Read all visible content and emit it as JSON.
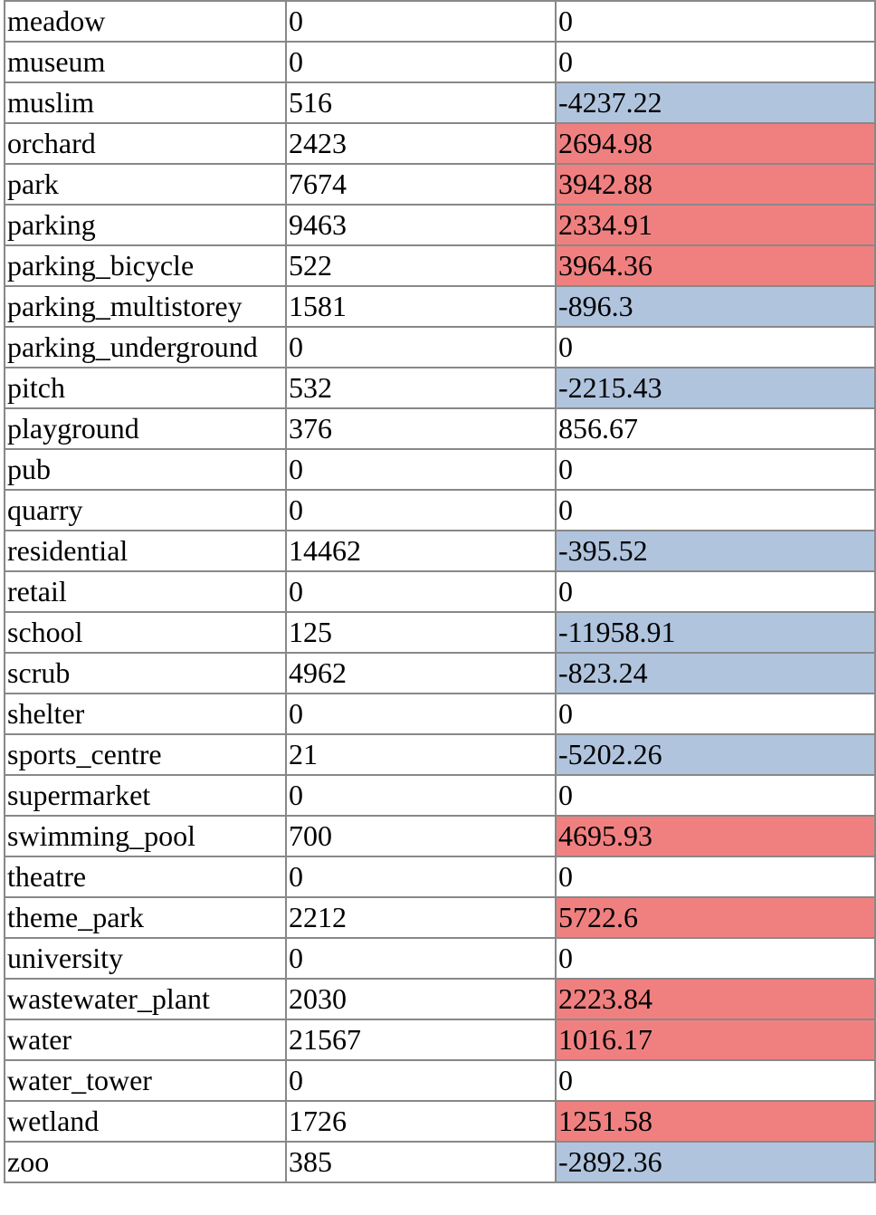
{
  "table": {
    "rows": [
      {
        "name": "meadow",
        "count": "0",
        "value": "0",
        "highlight": "none"
      },
      {
        "name": "museum",
        "count": "0",
        "value": "0",
        "highlight": "none"
      },
      {
        "name": "muslim",
        "count": "516",
        "value": "-4237.22",
        "highlight": "negative"
      },
      {
        "name": "orchard",
        "count": "2423",
        "value": "2694.98",
        "highlight": "positive"
      },
      {
        "name": "park",
        "count": "7674",
        "value": "3942.88",
        "highlight": "positive"
      },
      {
        "name": "parking",
        "count": "9463",
        "value": "2334.91",
        "highlight": "positive"
      },
      {
        "name": "parking_bicycle",
        "count": "522",
        "value": "3964.36",
        "highlight": "positive"
      },
      {
        "name": "parking_multistorey",
        "count": "1581",
        "value": "-896.3",
        "highlight": "negative"
      },
      {
        "name": "parking_underground",
        "count": "0",
        "value": "0",
        "highlight": "none"
      },
      {
        "name": "pitch",
        "count": "532",
        "value": "-2215.43",
        "highlight": "negative"
      },
      {
        "name": "playground",
        "count": "376",
        "value": "856.67",
        "highlight": "none"
      },
      {
        "name": "pub",
        "count": "0",
        "value": "0",
        "highlight": "none"
      },
      {
        "name": "quarry",
        "count": "0",
        "value": "0",
        "highlight": "none"
      },
      {
        "name": "residential",
        "count": "14462",
        "value": "-395.52",
        "highlight": "negative"
      },
      {
        "name": "retail",
        "count": "0",
        "value": "0",
        "highlight": "none"
      },
      {
        "name": "school",
        "count": "125",
        "value": "-11958.91",
        "highlight": "negative"
      },
      {
        "name": "scrub",
        "count": "4962",
        "value": "-823.24",
        "highlight": "negative"
      },
      {
        "name": "shelter",
        "count": "0",
        "value": "0",
        "highlight": "none"
      },
      {
        "name": "sports_centre",
        "count": "21",
        "value": "-5202.26",
        "highlight": "negative"
      },
      {
        "name": "supermarket",
        "count": "0",
        "value": "0",
        "highlight": "none"
      },
      {
        "name": "swimming_pool",
        "count": "700",
        "value": "4695.93",
        "highlight": "positive"
      },
      {
        "name": "theatre",
        "count": "0",
        "value": "0",
        "highlight": "none"
      },
      {
        "name": "theme_park",
        "count": "2212",
        "value": "5722.6",
        "highlight": "positive"
      },
      {
        "name": "university",
        "count": "0",
        "value": "0",
        "highlight": "none"
      },
      {
        "name": "wastewater_plant",
        "count": "2030",
        "value": "2223.84",
        "highlight": "positive"
      },
      {
        "name": "water",
        "count": "21567",
        "value": "1016.17",
        "highlight": "positive"
      },
      {
        "name": "water_tower",
        "count": "0",
        "value": "0",
        "highlight": "none"
      },
      {
        "name": "wetland",
        "count": "1726",
        "value": "1251.58",
        "highlight": "positive"
      },
      {
        "name": "zoo",
        "count": "385",
        "value": "-2892.36",
        "highlight": "negative"
      }
    ]
  },
  "colors": {
    "negative": "#b0c4de",
    "positive": "#f08080",
    "border": "#888888"
  }
}
